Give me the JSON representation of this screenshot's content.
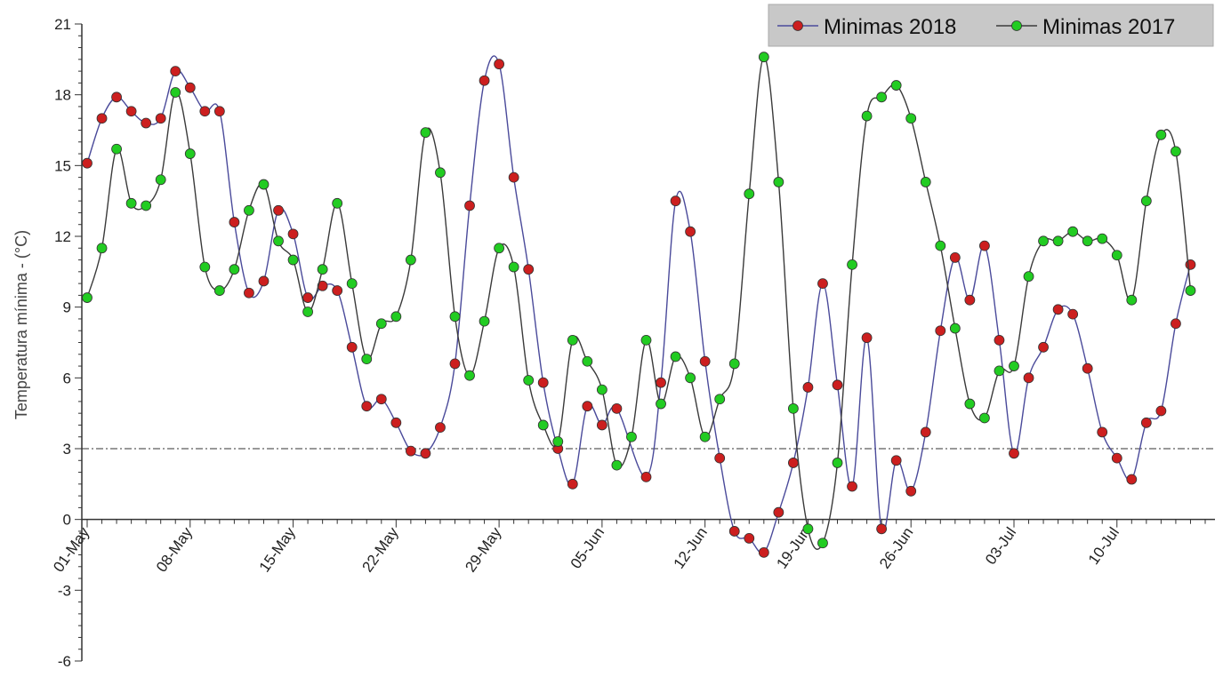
{
  "chart_data": {
    "type": "line",
    "title": "",
    "ylabel": "Temperatura mínima - (°C)",
    "xlabel": "",
    "ylim": [
      -6,
      21
    ],
    "yticks": [
      -6,
      -3,
      0,
      3,
      6,
      9,
      12,
      15,
      18,
      21
    ],
    "x_range_days": [
      0,
      76
    ],
    "x_ticks": [
      {
        "label": "01-May",
        "day": 0
      },
      {
        "label": "08-May",
        "day": 7
      },
      {
        "label": "15-May",
        "day": 14
      },
      {
        "label": "22-May",
        "day": 21
      },
      {
        "label": "29-May",
        "day": 28
      },
      {
        "label": "05-Jun",
        "day": 35
      },
      {
        "label": "12-Jun",
        "day": 42
      },
      {
        "label": "19-Jun",
        "day": 49
      },
      {
        "label": "26-Jun",
        "day": 56
      },
      {
        "label": "03-Jul",
        "day": 63
      },
      {
        "label": "10-Jul",
        "day": 70
      }
    ],
    "reference_line": {
      "value": 3,
      "style": "dash-dot"
    },
    "grid": false,
    "legend_position": "top-right",
    "series": [
      {
        "name": "Minimas 2018",
        "color": "#cc1f1f",
        "line_color": "#4a4a9a",
        "values": [
          15.1,
          17.0,
          17.9,
          17.3,
          16.8,
          17.0,
          19.0,
          18.3,
          17.3,
          17.3,
          12.6,
          9.6,
          10.1,
          13.1,
          12.1,
          9.4,
          9.9,
          9.7,
          7.3,
          4.8,
          5.1,
          4.1,
          2.9,
          2.8,
          3.9,
          6.6,
          13.3,
          18.6,
          19.3,
          14.5,
          10.6,
          5.8,
          3.0,
          1.5,
          4.8,
          4.0,
          4.7,
          null,
          1.8,
          5.8,
          13.5,
          12.2,
          6.7,
          2.6,
          -0.5,
          -0.8,
          -1.4,
          0.3,
          2.4,
          5.6,
          10.0,
          5.7,
          1.4,
          7.7,
          -0.4,
          2.5,
          1.2,
          3.7,
          8.0,
          11.1,
          9.3,
          11.6,
          7.6,
          2.8,
          6.0,
          7.3,
          8.9,
          8.7,
          6.4,
          3.7,
          2.6,
          1.7,
          4.1,
          4.6,
          8.3,
          10.8
        ]
      },
      {
        "name": "Minimas 2017",
        "color": "#22cc22",
        "line_color": "#3a3a3a",
        "values": [
          9.4,
          11.5,
          15.7,
          13.4,
          13.3,
          14.4,
          18.1,
          15.5,
          10.7,
          9.7,
          10.6,
          13.1,
          14.2,
          11.8,
          11.0,
          8.8,
          10.6,
          13.4,
          10.0,
          6.8,
          8.3,
          8.6,
          11.0,
          16.4,
          14.7,
          8.6,
          6.1,
          8.4,
          11.5,
          10.7,
          5.9,
          4.0,
          3.3,
          7.6,
          6.7,
          5.5,
          2.3,
          3.5,
          7.6,
          4.9,
          6.9,
          6.0,
          3.5,
          5.1,
          6.6,
          13.8,
          19.6,
          14.3,
          4.7,
          -0.4,
          -1.0,
          2.4,
          10.8,
          17.1,
          17.9,
          18.4,
          17.0,
          14.3,
          11.6,
          8.1,
          4.9,
          4.3,
          6.3,
          6.5,
          10.3,
          11.8,
          11.8,
          12.2,
          11.8,
          11.9,
          11.2,
          9.3,
          13.5,
          16.3,
          15.6,
          9.7
        ]
      }
    ]
  }
}
